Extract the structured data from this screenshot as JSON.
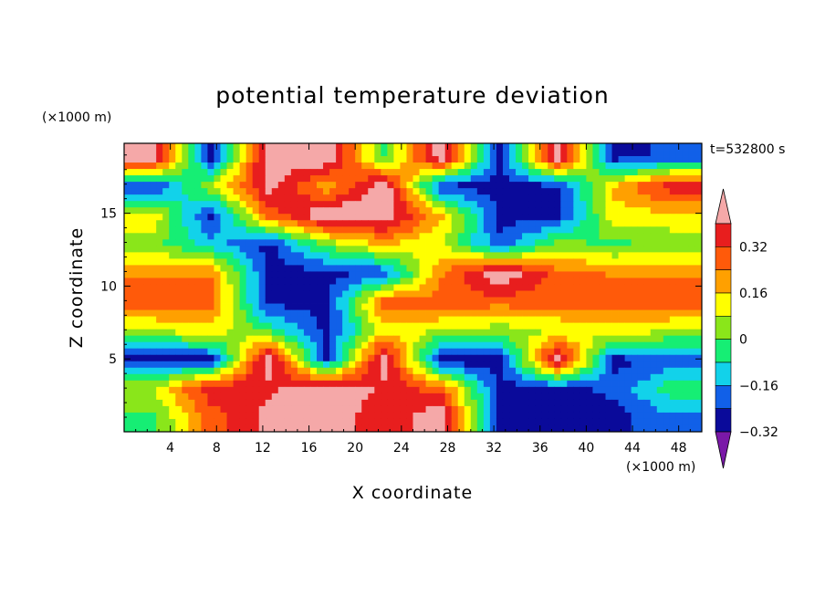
{
  "chart_data": {
    "type": "heatmap",
    "title": "potential temperature deviation",
    "xlabel": "X coordinate",
    "ylabel": "Z coordinate",
    "x_unit": "(×1000 m)",
    "y_unit": "(×1000 m)",
    "time_label": "t=532800 s",
    "xlim": [
      0,
      50
    ],
    "ylim": [
      0,
      19.8
    ],
    "x_ticks": [
      4,
      8,
      12,
      16,
      20,
      24,
      28,
      32,
      36,
      40,
      44,
      48
    ],
    "y_ticks": [
      5,
      10,
      15
    ],
    "grid": false,
    "colorbar": {
      "position": "right",
      "extend": "both",
      "levels": [
        -0.4,
        -0.32,
        -0.24,
        -0.16,
        -0.08,
        0,
        0.08,
        0.16,
        0.24,
        0.32,
        0.4
      ],
      "tick_labels": [
        "0.32",
        "0.16",
        "0",
        "−0.16",
        "−0.32"
      ],
      "tick_values": [
        0.32,
        0.16,
        0,
        -0.16,
        -0.32
      ],
      "colors": [
        "#7a18a8",
        "#0a0a9a",
        "#1160e8",
        "#12d2ea",
        "#16ee74",
        "#8ae61a",
        "#ffff00",
        "#ffa000",
        "#ff5a0a",
        "#e81e1e",
        "#f5a8a8"
      ]
    },
    "field_rows_z": [
      19.0,
      17.0,
      15.0,
      13.0,
      11.0,
      9.0,
      7.0,
      5.0,
      3.0,
      1.0
    ],
    "field_cols_x": [
      2.5,
      7.5,
      12.5,
      17.5,
      22.5,
      27.5,
      32.5,
      37.5,
      42.5,
      47.5
    ],
    "values": [
      [
        0.4,
        -0.35,
        0.4,
        0.4,
        -0.1,
        0.4,
        -0.35,
        0.4,
        -0.35,
        -0.3
      ],
      [
        -0.35,
        0.0,
        0.35,
        0.1,
        0.4,
        -0.35,
        -0.35,
        -0.35,
        0.1,
        0.3
      ],
      [
        0.05,
        -0.35,
        0.2,
        0.4,
        0.4,
        0.1,
        -0.35,
        -0.35,
        0.05,
        0.05
      ],
      [
        -0.05,
        -0.2,
        -0.35,
        -0.05,
        0.1,
        0.0,
        -0.3,
        -0.05,
        -0.1,
        -0.05
      ],
      [
        0.15,
        0.15,
        -0.35,
        -0.35,
        -0.3,
        0.15,
        0.4,
        0.2,
        0.15,
        0.15
      ],
      [
        0.2,
        0.2,
        -0.35,
        -0.35,
        0.2,
        0.2,
        0.2,
        0.2,
        0.2,
        0.2
      ],
      [
        0.0,
        0.05,
        -0.1,
        -0.35,
        0.05,
        0.0,
        -0.05,
        0.0,
        0.05,
        0.0
      ],
      [
        -0.35,
        -0.35,
        0.4,
        -0.35,
        0.4,
        -0.4,
        -0.35,
        0.4,
        -0.35,
        -0.3
      ],
      [
        0.0,
        0.3,
        0.3,
        0.4,
        0.3,
        0.2,
        -0.35,
        -0.35,
        -0.3,
        -0.1
      ],
      [
        -0.1,
        0.2,
        0.35,
        0.4,
        0.25,
        0.4,
        -0.4,
        -0.35,
        -0.35,
        -0.25
      ]
    ]
  }
}
